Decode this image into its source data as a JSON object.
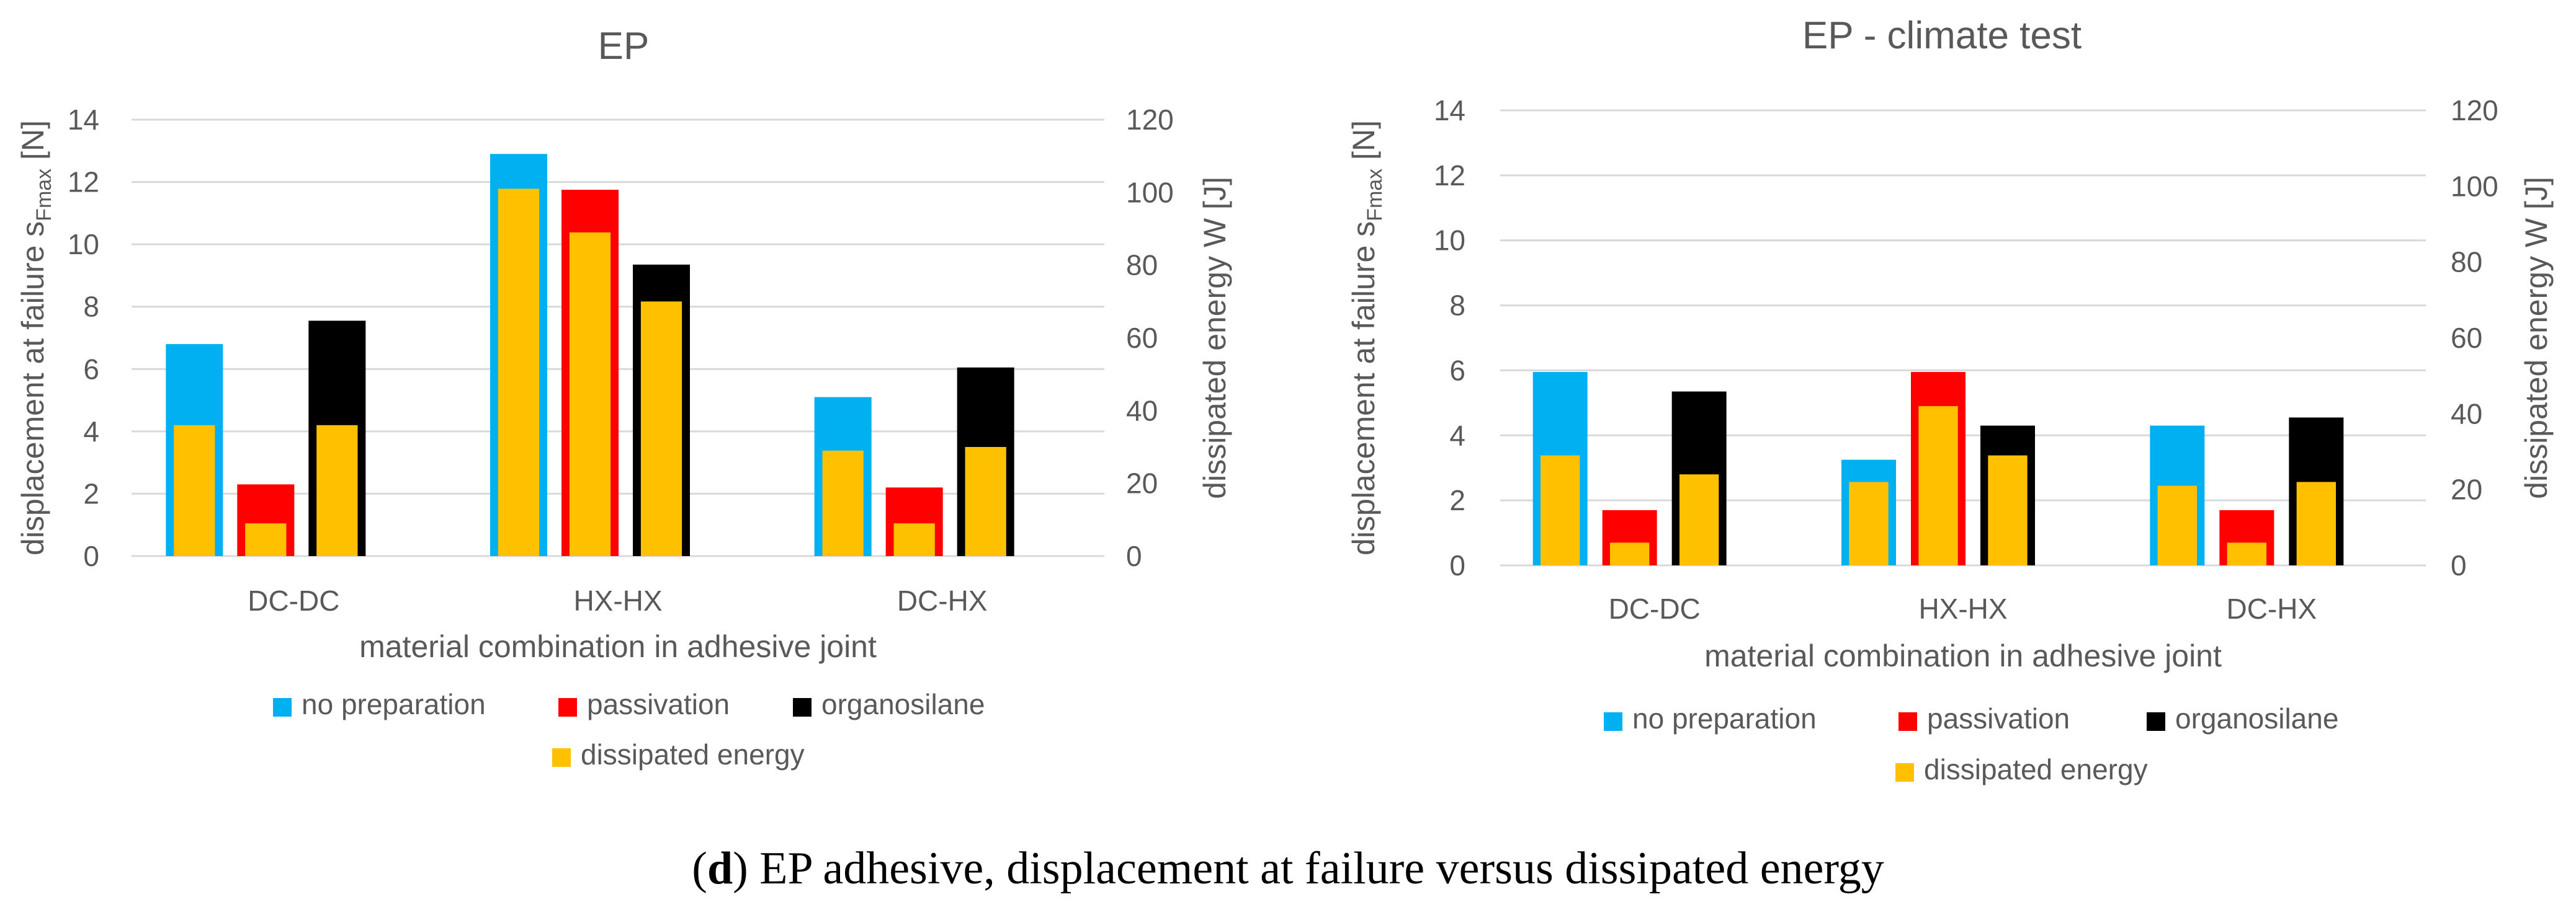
{
  "figure": {
    "caption_prefix": "(",
    "caption_letter": "d",
    "caption_rest": ") EP adhesive, displacement at failure versus dissipated energy"
  },
  "colors": {
    "no_preparation": "#00B0F0",
    "passivation": "#FF0000",
    "organosilane": "#000000",
    "dissipated_energy": "#FFC000"
  },
  "chart_data": [
    {
      "type": "bar",
      "title": "EP",
      "categories": [
        "DC-DC",
        "HX-HX",
        "DC-HX"
      ],
      "xlabel": "material combination in adhesive joint",
      "ylabel_main": "displacement at failure s",
      "ylabel_sub": "Fmax",
      "ylabel_tail": " [N]",
      "y2label": "dissipated energy W [J]",
      "ylim": [
        0,
        14
      ],
      "y_ticks": [
        0,
        2,
        4,
        6,
        8,
        10,
        12,
        14
      ],
      "y2lim": [
        0,
        120
      ],
      "y2_ticks": [
        0,
        20,
        40,
        60,
        80,
        100,
        120
      ],
      "grid": true,
      "legend_position": "bottom",
      "series": [
        {
          "name": "no preparation",
          "values": [
            6.8,
            12.9,
            5.1
          ]
        },
        {
          "name": "passivation",
          "values": [
            2.3,
            11.75,
            2.2
          ]
        },
        {
          "name": "organosilane",
          "values": [
            7.55,
            9.35,
            6.05
          ]
        }
      ],
      "energy_series": {
        "name": "dissipated energy",
        "axis": "secondary",
        "values": [
          [
            36,
            9,
            36
          ],
          [
            101,
            89,
            70
          ],
          [
            29,
            9,
            30
          ]
        ]
      }
    },
    {
      "type": "bar",
      "title": "EP - climate test",
      "categories": [
        "DC-DC",
        "HX-HX",
        "DC-HX"
      ],
      "xlabel": "material combination in adhesive joint",
      "ylabel_main": "displacement at failure s",
      "ylabel_sub": "Fmax",
      "ylabel_tail": " [N]",
      "y2label": "dissipated energy W [J]",
      "ylim": [
        0,
        14
      ],
      "y_ticks": [
        0,
        2,
        4,
        6,
        8,
        10,
        12,
        14
      ],
      "y2lim": [
        0,
        120
      ],
      "y2_ticks": [
        0,
        20,
        40,
        60,
        80,
        100,
        120
      ],
      "grid": true,
      "legend_position": "bottom",
      "series": [
        {
          "name": "no preparation",
          "values": [
            5.95,
            3.25,
            4.3
          ]
        },
        {
          "name": "passivation",
          "values": [
            1.7,
            5.95,
            1.7
          ]
        },
        {
          "name": "organosilane",
          "values": [
            5.35,
            4.3,
            4.55
          ]
        }
      ],
      "energy_series": {
        "name": "dissipated energy",
        "axis": "secondary",
        "values": [
          [
            29,
            6,
            24
          ],
          [
            22,
            42,
            29
          ],
          [
            21,
            6,
            22
          ]
        ]
      }
    }
  ]
}
